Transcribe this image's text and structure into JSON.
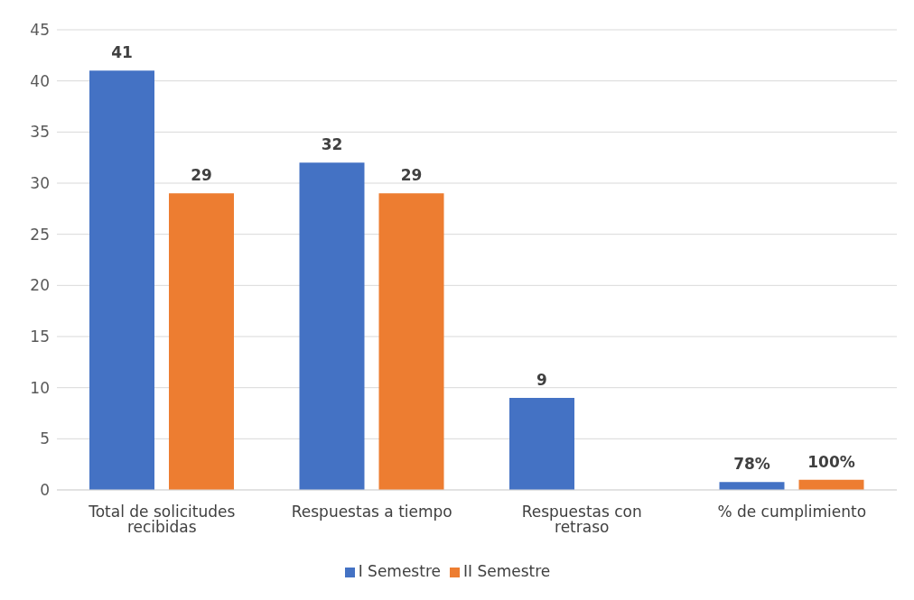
{
  "chart_data": {
    "type": "bar",
    "categories": [
      "Total de solicitudes recibidas",
      "Respuestas a tiempo",
      "Respuestas con retraso",
      "% de cumplimiento"
    ],
    "series": [
      {
        "name": "I Semestre",
        "color": "#4472c4",
        "values": [
          41,
          32,
          9,
          0.78
        ],
        "value_labels": [
          "41",
          "32",
          "9",
          "78%"
        ]
      },
      {
        "name": "II Semestre",
        "color": "#ed7d31",
        "values": [
          29,
          29,
          null,
          1
        ],
        "value_labels": [
          "29",
          "29",
          null,
          "100%"
        ]
      }
    ],
    "ylim": [
      0,
      45
    ],
    "yticks": [
      0,
      5,
      10,
      15,
      20,
      25,
      30,
      35,
      40,
      45
    ],
    "grid": "y",
    "legend": "bottom"
  }
}
